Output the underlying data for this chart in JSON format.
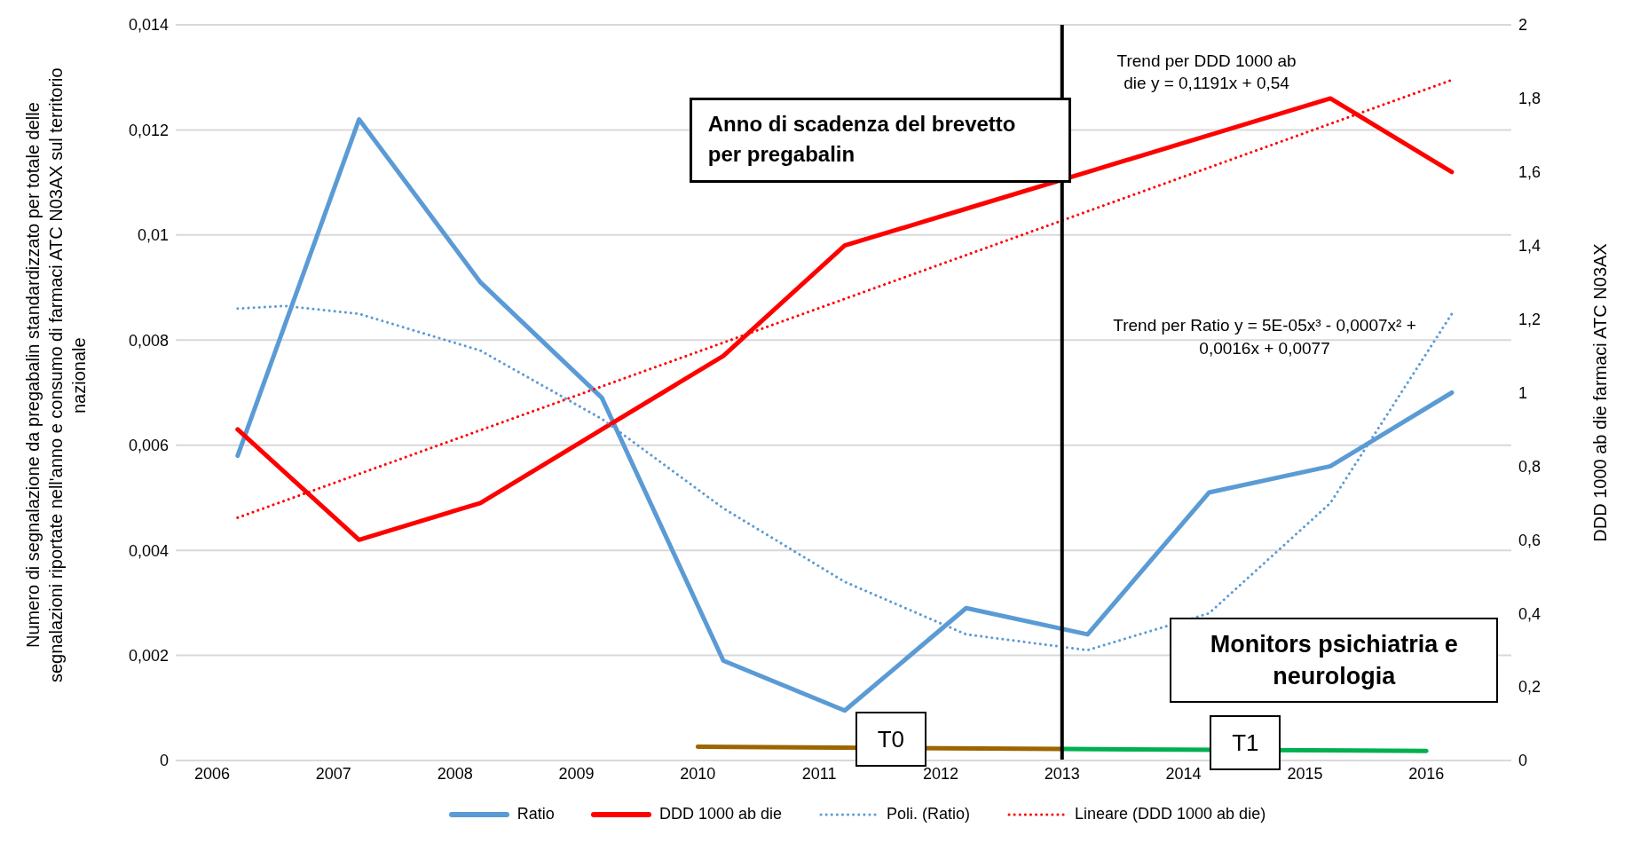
{
  "chart_data": {
    "type": "line",
    "ylabel": "Numero di segnalazione da pregabalin standardizzato per totale delle segnalazioni riportate nell'anno e consumo di farmaci ATC N03AX  sul territorio nazionale",
    "y2label": "DDD 1000 ab die farmaci ATC N03AX",
    "xlim": [
      2005.7,
      2016.7
    ],
    "xticks": [
      2006,
      2007,
      2008,
      2009,
      2010,
      2011,
      2012,
      2013,
      2014,
      2015,
      2016
    ],
    "ylim": [
      0,
      0.014
    ],
    "yticks": [
      0,
      {
        "value": 0.002,
        "label": "0,002"
      },
      {
        "value": 0.004,
        "label": "0,004"
      },
      {
        "value": 0.006,
        "label": "0,006"
      },
      {
        "value": 0.008,
        "label": "0,008"
      },
      {
        "value": 0.01,
        "label": "0,01"
      },
      {
        "value": 0.012,
        "label": "0,012"
      },
      {
        "value": 0.014,
        "label": "0,014"
      }
    ],
    "y2lim": [
      0,
      2
    ],
    "y2ticks": [
      0,
      {
        "value": 0.2,
        "label": "0,2"
      },
      {
        "value": 0.4,
        "label": "0,4"
      },
      {
        "value": 0.6,
        "label": "0,6"
      },
      {
        "value": 0.8,
        "label": "0,8"
      },
      1,
      {
        "value": 1.2,
        "label": "1,2"
      },
      {
        "value": 1.4,
        "label": "1,4"
      },
      {
        "value": 1.6,
        "label": "1,6"
      },
      {
        "value": 1.8,
        "label": "1,8"
      },
      2
    ],
    "grid": "y",
    "legend": "bottom",
    "series": [
      {
        "name": "Ratio",
        "color": "#5b9bd5",
        "line_style": "solid",
        "x": [
          2006.21,
          2007.21,
          2008.21,
          2009.21,
          2010.21,
          2011.21,
          2012.21,
          2013.21,
          2014.21,
          2015.21,
          2016.21
        ],
        "values": [
          0.0058,
          0.0122,
          0.0091,
          0.0069,
          0.0019,
          0.00095,
          0.0029,
          0.0024,
          0.0051,
          0.0056,
          0.007
        ]
      },
      {
        "name": "DDD 1000 ab die",
        "color": "#ff0000",
        "line_style": "solid",
        "axis": "y2",
        "x": [
          2006.21,
          2007.21,
          2008.21,
          2009.21,
          2010.21,
          2011.21,
          2012.21,
          2013.21,
          2014.21,
          2015.21,
          2016.21
        ],
        "values": [
          0.9,
          0.6,
          0.7,
          0.9,
          1.1,
          1.4,
          1.5,
          1.6,
          1.7,
          1.8,
          1.6
        ]
      },
      {
        "name": "Poli. (Ratio)",
        "color": "#5b9bd5",
        "line_style": "dotted",
        "x": [
          2006.21,
          2006.6,
          2007.21,
          2008.21,
          2009.21,
          2010.21,
          2011.21,
          2012.21,
          2013.21,
          2014.21,
          2015.21,
          2016.21
        ],
        "values": [
          0.0086,
          0.00865,
          0.0085,
          0.0078,
          0.0065,
          0.0048,
          0.0034,
          0.0024,
          0.0021,
          0.0028,
          0.0049,
          0.0085
        ]
      },
      {
        "name": "Lineare (DDD 1000 ab die)",
        "color": "#ff0000",
        "line_style": "dotted",
        "axis": "y2",
        "x": [
          2006.21,
          2016.21
        ],
        "values": [
          0.66,
          1.85
        ]
      },
      {
        "color": "#9c6500",
        "line_style": "solid",
        "x": [
          2010,
          2013
        ],
        "values": [
          0.00026,
          0.00022
        ]
      },
      {
        "color": "#00b050",
        "line_style": "solid",
        "x": [
          2013,
          2016
        ],
        "values": [
          0.00022,
          0.00018
        ]
      }
    ],
    "ref_lines": [
      {
        "axis": "x",
        "value": 2013,
        "label": "Anno di scadenza del brevetto per pregabalin",
        "color": "#000000"
      }
    ],
    "annotations": [
      "Trend per DDD 1000 ab die y = 0,1191x + 0,54",
      "Trend per Ratio y = 5E-05x³ - 0,0007x² + 0,0016x + 0,0077",
      "Monitors psichiatria e neurologia",
      "T0",
      "T1"
    ]
  }
}
